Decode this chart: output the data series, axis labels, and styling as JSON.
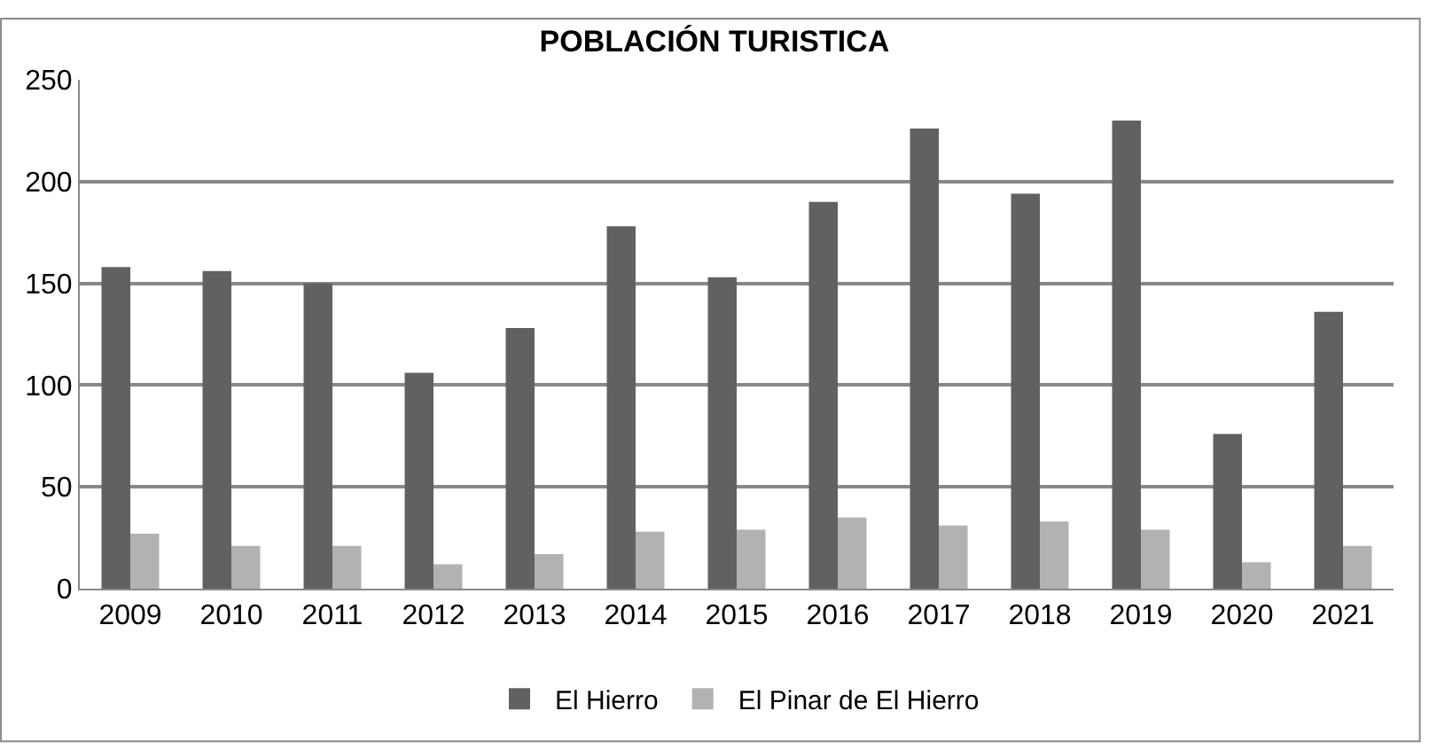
{
  "chart_data": {
    "type": "bar",
    "title": "POBLACIÓN TURISTICA",
    "categories": [
      "2009",
      "2010",
      "2011",
      "2012",
      "2013",
      "2014",
      "2015",
      "2016",
      "2017",
      "2018",
      "2019",
      "2020",
      "2021"
    ],
    "series": [
      {
        "name": "El Hierro",
        "color": "#616161",
        "values": [
          158,
          156,
          150,
          106,
          128,
          178,
          153,
          190,
          226,
          194,
          230,
          76,
          136
        ]
      },
      {
        "name": "El Pinar de El Hierro",
        "color": "#b2b2b2",
        "values": [
          27,
          21,
          21,
          12,
          17,
          28,
          29,
          35,
          31,
          33,
          29,
          13,
          21
        ]
      }
    ],
    "ylim": [
      0,
      250
    ],
    "yticks": [
      0,
      50,
      100,
      150,
      200,
      250
    ],
    "grid": "y",
    "legend": "bottom"
  }
}
